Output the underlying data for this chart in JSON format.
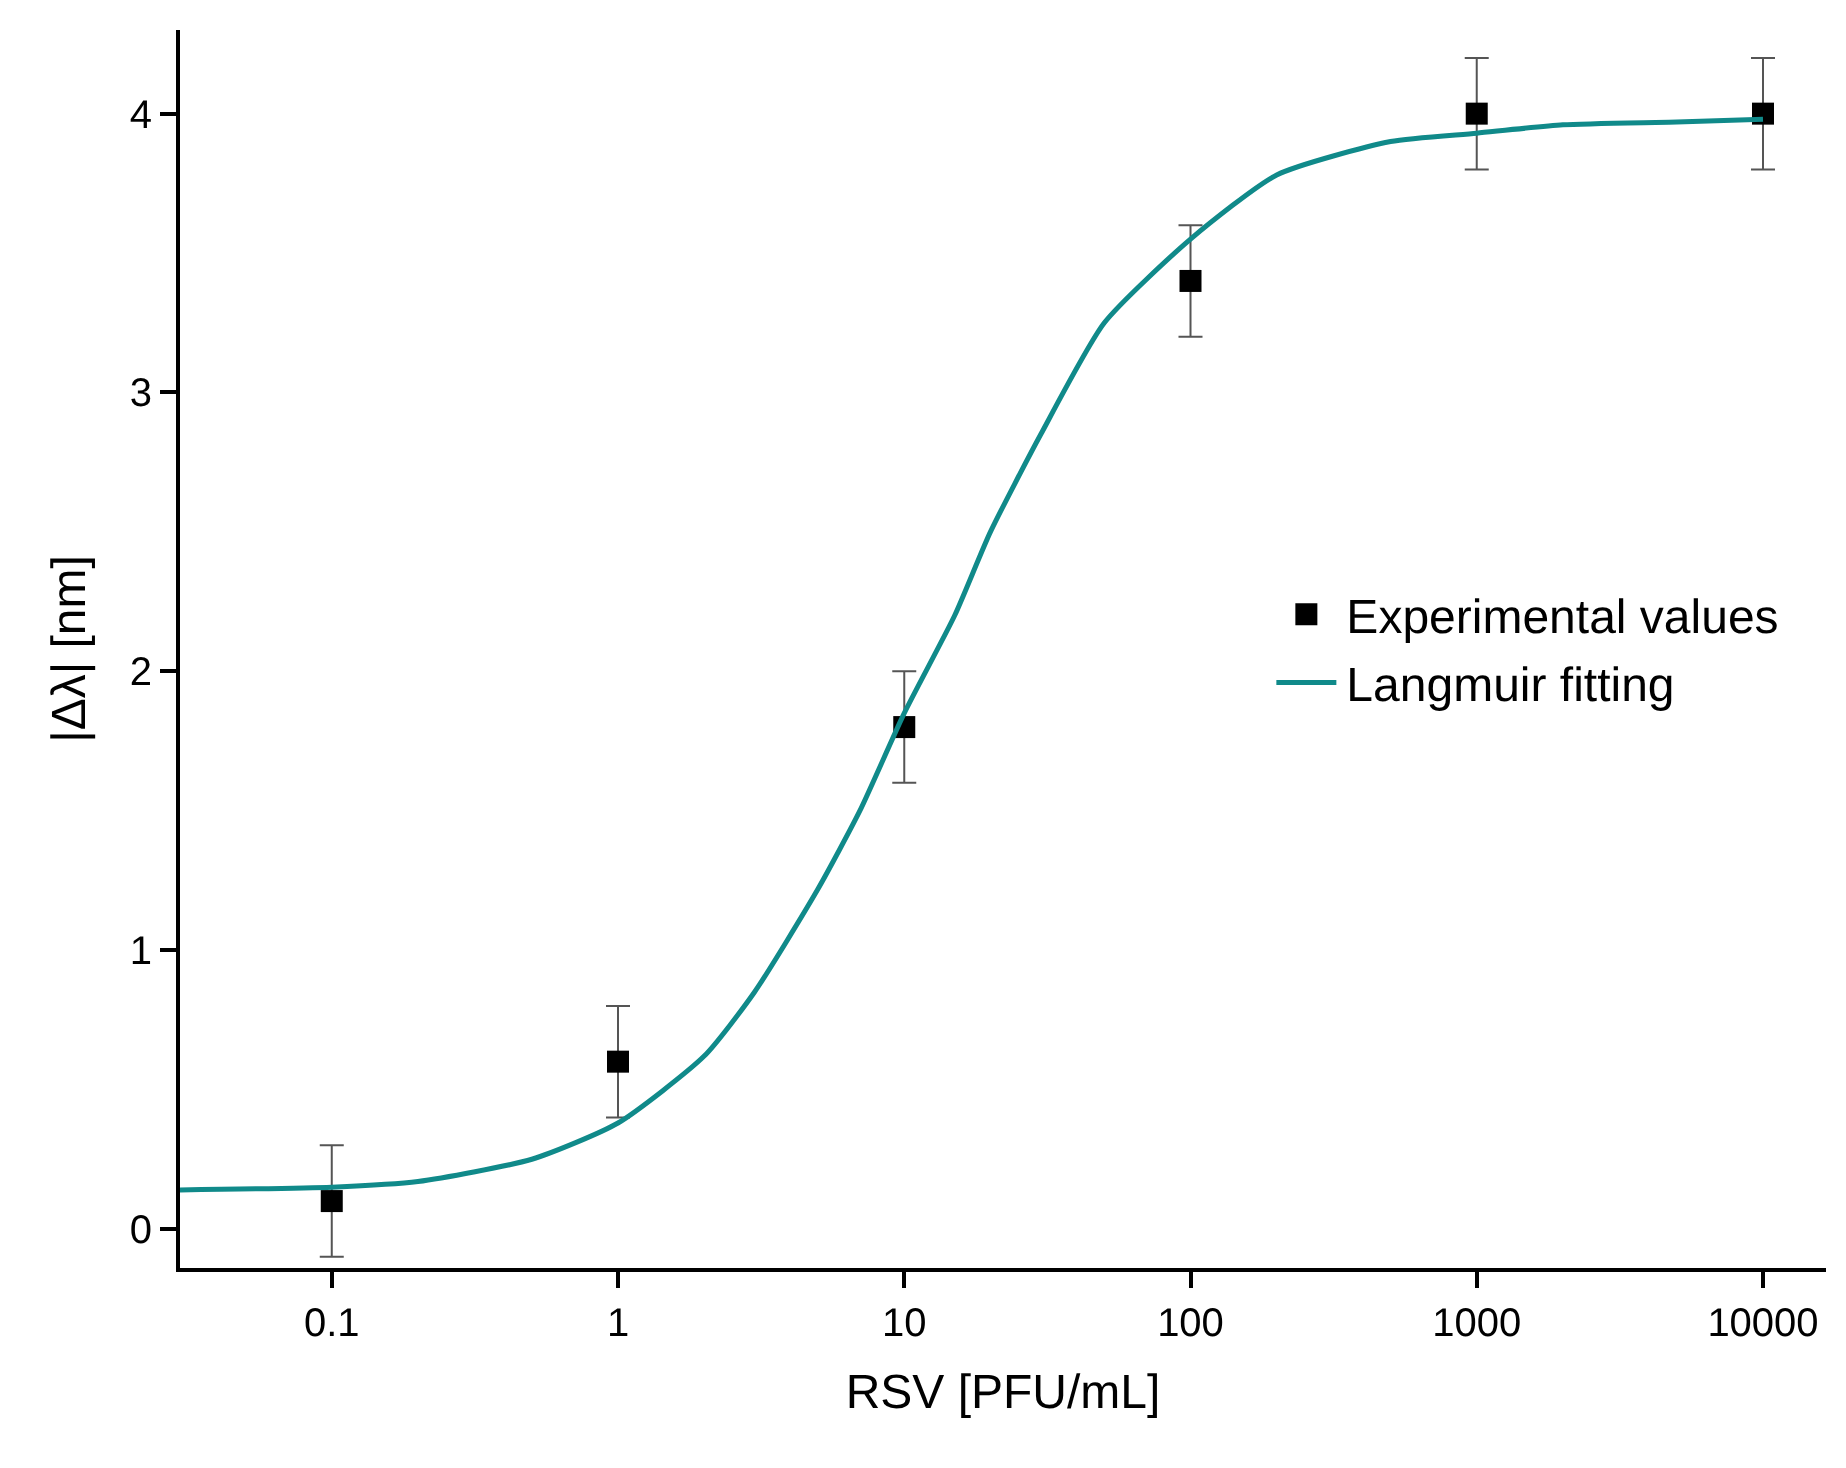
{
  "chart_data": {
    "type": "scatter",
    "xlabel": "RSV [PFU/mL]",
    "ylabel": "|Δλ| [nm]",
    "log": "x",
    "xlim": [
      0.0295,
      16600
    ],
    "xticks": [
      0.1,
      1,
      10,
      100,
      1000,
      10000
    ],
    "ylim": [
      -0.14,
      4.3
    ],
    "yticks": [
      0,
      1,
      2,
      3,
      4
    ],
    "legend": "right",
    "series": [
      {
        "name": "Experimental values",
        "color": "#000000",
        "marker": "square",
        "x": [
          0.1,
          1,
          10,
          100,
          1000,
          10000
        ],
        "values": [
          0.1,
          0.6,
          1.8,
          3.4,
          4.0,
          4.0
        ],
        "errors": [
          0.2,
          0.2,
          0.2,
          0.2,
          0.2,
          0.2
        ]
      },
      {
        "name": "Langmuir fitting",
        "type": "line",
        "color": "#108a8a",
        "marker": "none",
        "line_style": "solid",
        "x": [
          0.0295,
          0.1,
          0.2,
          0.5,
          1,
          2,
          3,
          5,
          7,
          10,
          15,
          20,
          30,
          50,
          100,
          200,
          500,
          1000,
          2000,
          5000,
          10000
        ],
        "values": [
          0.14,
          0.15,
          0.17,
          0.25,
          0.38,
          0.62,
          0.85,
          1.22,
          1.5,
          1.85,
          2.2,
          2.5,
          2.85,
          3.25,
          3.55,
          3.78,
          3.9,
          3.93,
          3.96,
          3.97,
          3.98
        ]
      }
    ]
  }
}
